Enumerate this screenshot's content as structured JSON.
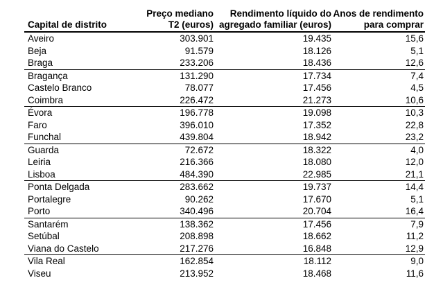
{
  "page": {
    "background": "#ffffff",
    "text_color": "#000000",
    "border_color": "#000000"
  },
  "table": {
    "headers": [
      {
        "id": "capital-de-distrito",
        "lines": [
          "Capital de distrito"
        ]
      },
      {
        "id": "preco-mediano-t2",
        "lines": [
          "Preço mediano",
          "T2 (euros)"
        ]
      },
      {
        "id": "rendimento-liquido",
        "lines": [
          "Rendimento líquido do",
          "agregado familiar (euros)"
        ]
      },
      {
        "id": "anos-de-rendimento",
        "lines": [
          "Anos de rendimento",
          "para comprar"
        ]
      }
    ],
    "group_separator_after_rows": [
      2,
      5,
      8,
      11,
      14,
      17
    ]
  },
  "chart_data": {
    "type": "table",
    "columns": [
      "Capital de distrito",
      "Preço mediano T2 (euros)",
      "Rendimento líquido do agregado familiar (euros)",
      "Anos de rendimento para comprar"
    ],
    "rows": [
      [
        "Aveiro",
        "303.901",
        "19.435",
        "15,6"
      ],
      [
        "Beja",
        "91.579",
        "18.126",
        "5,1"
      ],
      [
        "Braga",
        "233.206",
        "18.436",
        "12,6"
      ],
      [
        "Bragança",
        "131.290",
        "17.734",
        "7,4"
      ],
      [
        "Castelo Branco",
        "78.077",
        "17.456",
        "4,5"
      ],
      [
        "Coimbra",
        "226.472",
        "21.273",
        "10,6"
      ],
      [
        "Évora",
        "196.778",
        "19.098",
        "10,3"
      ],
      [
        "Faro",
        "396.010",
        "17.352",
        "22,8"
      ],
      [
        "Funchal",
        "439.804",
        "18.942",
        "23,2"
      ],
      [
        "Guarda",
        "72.672",
        "18.322",
        "4,0"
      ],
      [
        "Leiria",
        "216.366",
        "18.080",
        "12,0"
      ],
      [
        "Lisboa",
        "484.390",
        "22.985",
        "21,1"
      ],
      [
        "Ponta Delgada",
        "283.662",
        "19.737",
        "14,4"
      ],
      [
        "Portalegre",
        "90.262",
        "17.670",
        "5,1"
      ],
      [
        "Porto",
        "340.496",
        "20.704",
        "16,4"
      ],
      [
        "Santarém",
        "138.362",
        "17.456",
        "7,9"
      ],
      [
        "Setúbal",
        "208.898",
        "18.662",
        "11,2"
      ],
      [
        "Viana do Castelo",
        "217.276",
        "16.848",
        "12,9"
      ],
      [
        "Vila Real",
        "162.854",
        "18.112",
        "9,0"
      ],
      [
        "Viseu",
        "213.952",
        "18.468",
        "11,6"
      ]
    ]
  }
}
